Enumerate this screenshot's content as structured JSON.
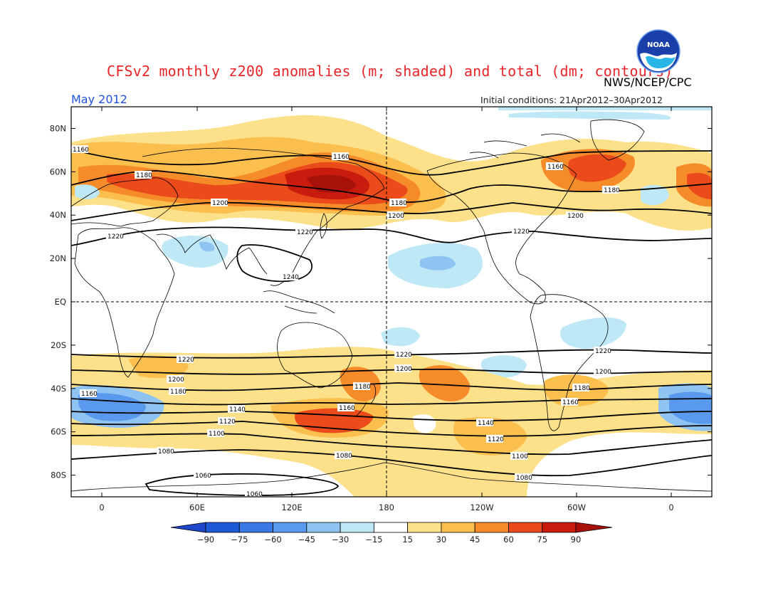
{
  "header": {
    "title": "CFSv2 monthly z200 anomalies (m; shaded) and total (dm; contours)",
    "agency": "NWS/NCEP/CPC",
    "period": "May 2012",
    "initial_conditions": "Initial conditions: 21Apr2012–30Apr2012",
    "logo_text": "NOAA"
  },
  "axes": {
    "lat_labels": [
      "80N",
      "60N",
      "40N",
      "20N",
      "EQ",
      "20S",
      "40S",
      "60S",
      "80S"
    ],
    "lon_labels": [
      "0",
      "60E",
      "120E",
      "180",
      "120W",
      "60W",
      "0"
    ]
  },
  "colorbar": {
    "ticks": [
      "-90",
      "-75",
      "-60",
      "-45",
      "-30",
      "-15",
      "15",
      "30",
      "45",
      "60",
      "75",
      "90"
    ],
    "colors": [
      "#1e5ad8",
      "#3a78e6",
      "#5a9aee",
      "#8fc4f2",
      "#bfe8f6",
      "#ffffff",
      "#fde08a",
      "#fbbf4e",
      "#f68b2a",
      "#eb4a1a",
      "#c91b0e"
    ],
    "low_end": "#1d46c8",
    "high_end": "#a8100a"
  },
  "map_style": {
    "frame_color": "#000000",
    "grid": "dashed",
    "background": "#ffffff"
  },
  "contour_labels": [
    "1160",
    "1180",
    "1200",
    "1220",
    "1240",
    "1220",
    "1200",
    "1180",
    "1160",
    "1140",
    "1120",
    "1100",
    "1080",
    "1060"
  ]
}
